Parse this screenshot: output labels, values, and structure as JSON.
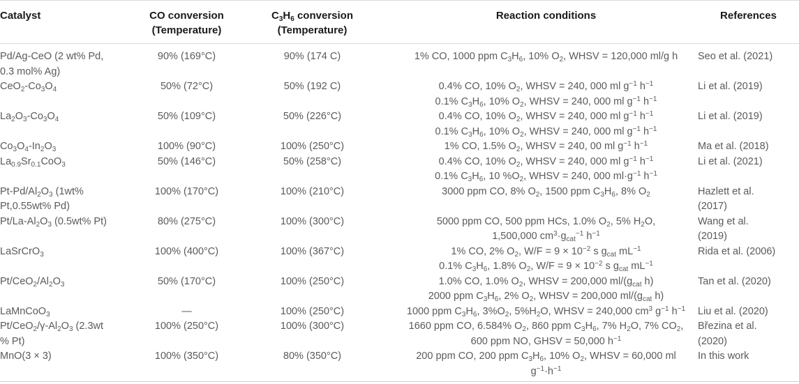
{
  "page": {
    "background": "#ffffff",
    "rule_color": "#d9d9d9",
    "header_text_color": "#1a1a1a",
    "body_text_color": "#595a5c"
  },
  "table": {
    "columns": [
      {
        "id": "catalyst",
        "label_lines": [
          "Catalyst"
        ]
      },
      {
        "id": "co_conversion",
        "label_lines": [
          "CO conversion",
          "(Temperature)"
        ]
      },
      {
        "id": "c3h6_conversion",
        "label_lines": [
          "C_{3}H_{6} conversion",
          "(Temperature)"
        ]
      },
      {
        "id": "conditions",
        "label_lines": [
          "Reaction conditions"
        ]
      },
      {
        "id": "references",
        "label_lines": [
          "References"
        ]
      }
    ],
    "rows": [
      {
        "catalyst_lines": [
          "Pd/Ag-CeO (2 wt% Pd,",
          "0.3 mol% Ag)"
        ],
        "co_conversion": "90% (169°C)",
        "c3h6_conversion": "90% (174 C)",
        "conditions_lines": [
          "1% CO, 1000 ppm C_{3}H_{6}, 10% O_{2}, WHSV = 120,000 ml/g h"
        ],
        "reference_lines": [
          "Seo et al. (2021)"
        ]
      },
      {
        "catalyst_lines": [
          "CeO_{2}-Co_{3}O_{4}"
        ],
        "co_conversion": "50% (72°C)",
        "c3h6_conversion": "50% (192 C)",
        "conditions_lines": [
          "0.4% CO, 10% O_{2}, WHSV = 240, 000 ml g^{−1} h^{−1}",
          "0.1% C_{3}H_{6}, 10% O_{2}, WHSV = 240, 000 ml g^{−1} h^{−1}"
        ],
        "reference_lines": [
          "Li et al. (2019)"
        ]
      },
      {
        "catalyst_lines": [
          "La_{2}O_{3}-Co_{3}O_{4}"
        ],
        "co_conversion": "50% (109°C)",
        "c3h6_conversion": "50% (226°C)",
        "conditions_lines": [
          "0.4% CO, 10% O_{2}, WHSV = 240, 000 ml g^{−1} h^{−1}",
          "0.1% C_{3}H_{6}, 10% O_{2}, WHSV = 240, 000 ml g^{−1} h^{−1}"
        ],
        "reference_lines": [
          "Li et al. (2019)"
        ]
      },
      {
        "catalyst_lines": [
          "Co_{3}O_{4}-In_{2}O_{3}"
        ],
        "co_conversion": "100% (90°C)",
        "c3h6_conversion": "100% (250°C)",
        "conditions_lines": [
          "1% CO, 1.5% O_{2}, WHSV = 240, 00 ml g^{−1} h^{−1}"
        ],
        "reference_lines": [
          "Ma et al. (2018)"
        ]
      },
      {
        "catalyst_lines": [
          "La_{0.9}Sr_{0.1}CoO_{3}"
        ],
        "co_conversion": "50% (146°C)",
        "c3h6_conversion": "50% (258°C)",
        "conditions_lines": [
          "0.4% CO, 10% O_{2}, WHSV = 240, 000 ml g^{−1} h^{−1}",
          "0.1% C_{3}H_{6}, 10 %O_{2}, WHSV = 240, 000 ml·g^{−1} h^{−1}"
        ],
        "reference_lines": [
          "Li et al. (2021)"
        ]
      },
      {
        "catalyst_lines": [
          "Pt-Pd/Al_{2}O_{3} (1wt%",
          "Pt,0.55wt% Pd)"
        ],
        "co_conversion": "100% (170°C)",
        "c3h6_conversion": "100% (210°C)",
        "conditions_lines": [
          "3000 ppm CO, 8% O_{2}, 1500 ppm C_{3}H_{6}, 8% O_{2}"
        ],
        "reference_lines": [
          "Hazlett et al.",
          "(2017)"
        ]
      },
      {
        "catalyst_lines": [
          "Pt/La-Al_{2}O_{3} (0.5wt% Pt)"
        ],
        "co_conversion": "80% (275°C)",
        "c3h6_conversion": "100% (300°C)",
        "conditions_lines": [
          "5000 ppm CO, 500 ppm HCs, 1.0% O_{2}, 5% H_{2}O,",
          "1,500,000 cm^{3}·g_{cat}^{−1} h^{−1}"
        ],
        "reference_lines": [
          "Wang et al.",
          "(2019)"
        ]
      },
      {
        "catalyst_lines": [
          "LaSrCrO_{3}"
        ],
        "co_conversion": "100% (400°C)",
        "c3h6_conversion": "100% (367°C)",
        "conditions_lines": [
          "1% CO, 2% O_{2}, W/F = 9 × 10^{−2} s g_{cat} mL^{−1}",
          "0.1% C_{3}H_{6}, 1.8% O_{2}, W/F = 9 × 10^{−2} s g_{cat} mL^{−1}"
        ],
        "reference_lines": [
          "Rida et al. (2006)"
        ]
      },
      {
        "catalyst_lines": [
          "Pt/CeO_{2}/Al_{2}O_{3}"
        ],
        "co_conversion": "50% (170°C)",
        "c3h6_conversion": "100% (250°C)",
        "conditions_lines": [
          "1.0% CO, 1.0% O_{2}, WHSV = 200,000 ml/(g_{cat} h)",
          "2000 ppm C_{3}H_{6}, 2% O_{2}, WHSV = 200,000 ml/(g_{cat} h)"
        ],
        "reference_lines": [
          "Tan et al. (2020)"
        ]
      },
      {
        "catalyst_lines": [
          "LaMnCoO_{3}"
        ],
        "co_conversion": "—",
        "c3h6_conversion": "100% (250°C)",
        "conditions_lines": [
          "1000 ppm C_{3}H_{6}, 3%O_{2}, 5%H_{2}O, WHSV = 240,000 cm^{3} g^{−1} h^{−1}"
        ],
        "reference_lines": [
          "Liu et al. (2020)"
        ]
      },
      {
        "catalyst_lines": [
          "Pt/CeO_{2}/γ-Al_{2}O_{3} (2.3wt",
          "% Pt)"
        ],
        "co_conversion": "100% (250°C)",
        "c3h6_conversion": "100% (300°C)",
        "conditions_lines": [
          "1660 ppm CO, 6.584% O_{2}, 860 ppm C_{3}H_{6}, 7% H_{2}O, 7% CO_{2},",
          "600 ppm NO, GHSV = 50,000 h^{−1}"
        ],
        "reference_lines": [
          "Březina et al.",
          "(2020)"
        ]
      },
      {
        "catalyst_lines": [
          "MnO(3 × 3)"
        ],
        "co_conversion": "100% (350°C)",
        "c3h6_conversion": "80% (350°C)",
        "conditions_lines": [
          "200 ppm CO, 200 ppm C_{3}H_{6}, 10% O_{2}, WHSV = 60,000 ml",
          "g^{−1}·h^{−1}"
        ],
        "reference_lines": [
          "In this work"
        ]
      }
    ]
  }
}
